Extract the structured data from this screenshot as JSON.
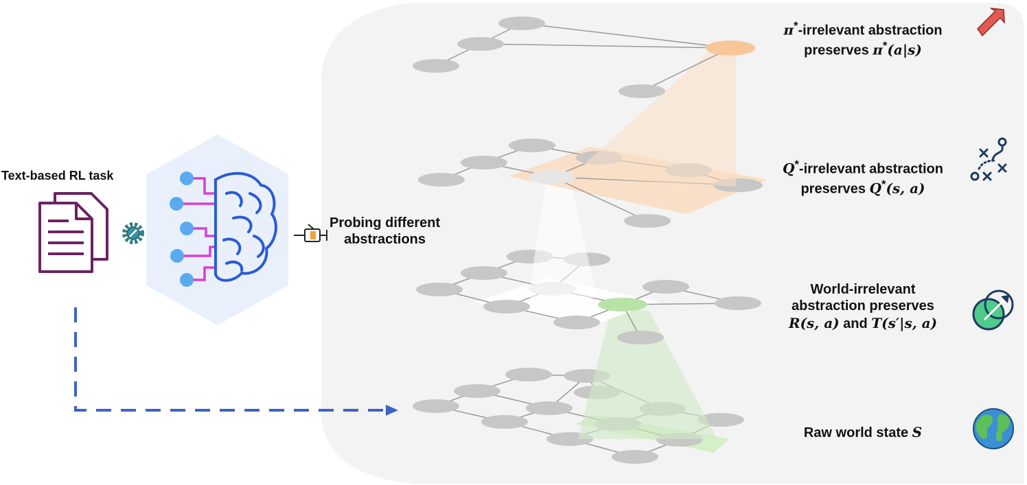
{
  "task_label": "Text-based RL task",
  "probe_label": {
    "line1": "Probing different",
    "line2": "abstractions"
  },
  "levels": {
    "policy": {
      "sym": "π",
      "sup": "*",
      "rest": "-irrelevant abstraction",
      "line2": "preserves",
      "expr": "(a|s)",
      "icon": "arrow-icon",
      "color": "#e05a50"
    },
    "qvalue": {
      "sym": "Q",
      "sup": "*",
      "rest": "-irrelevant abstraction",
      "line2": "preserves",
      "expr": "(s, a)",
      "icon": "play-diagram-icon",
      "color": "#1e3a5f"
    },
    "world": {
      "line1": "World-irrelevant",
      "line2": "abstraction preserves",
      "r": "R(s, a)",
      "and": " and ",
      "t": "T(s′|s, a)",
      "icon": "target-arrow-icon",
      "color": "#4ecb8a"
    },
    "raw": {
      "text": "Raw world state ",
      "sym": "S",
      "icon": "globe-icon",
      "color": "#3a8fd6"
    }
  },
  "colors": {
    "panel": "#f3f3f3",
    "node": "#c7c7c7",
    "edge": "#9a9a9a",
    "policy_highlight": "#f7c79a",
    "q_highlight": "#fbd8b8",
    "world_highlight": "#b9e3a6",
    "dashed_arrow": "#3b63c4",
    "brain": "#2a5bd7",
    "brain_wire": "#d93fd1",
    "doc": "#6b2361"
  }
}
